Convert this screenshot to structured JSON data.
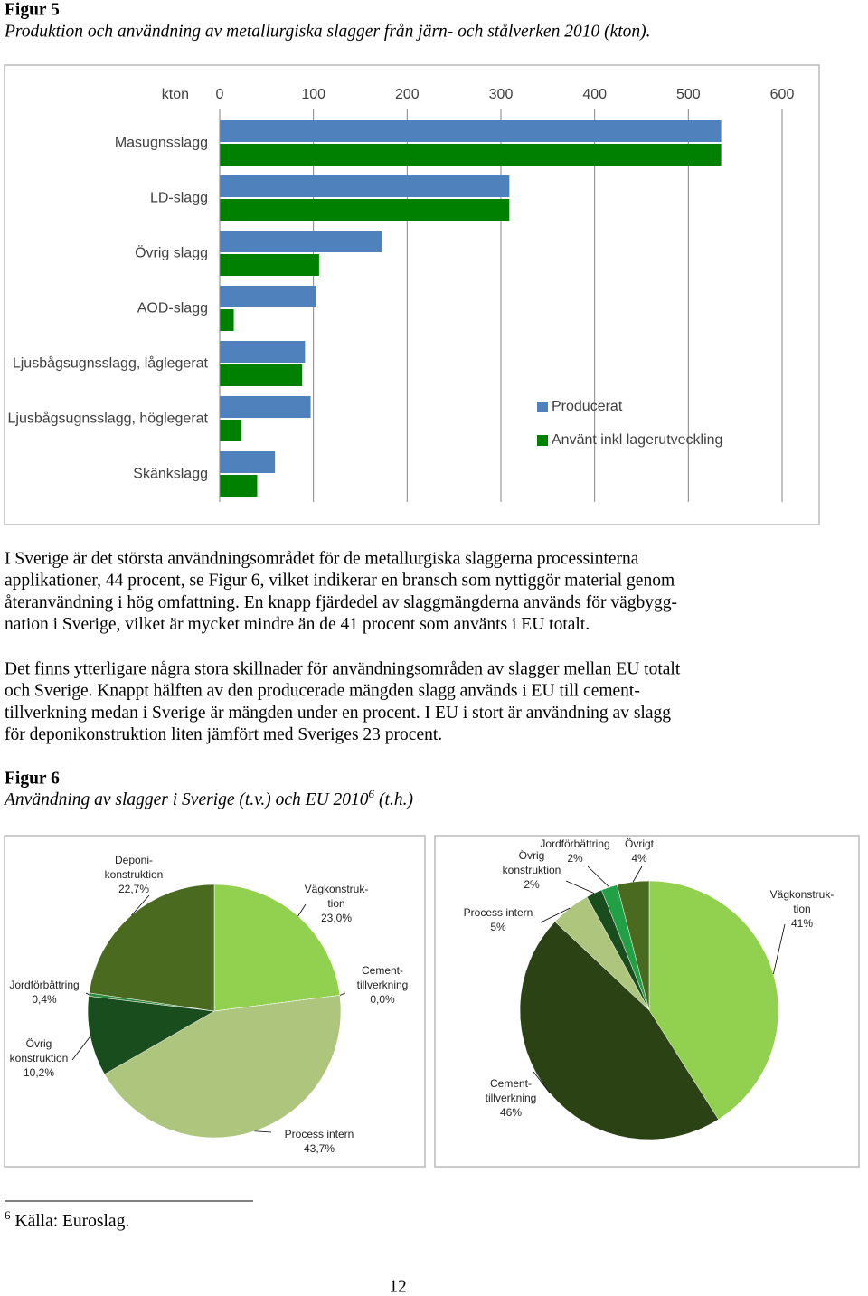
{
  "figure5": {
    "label": "Figur 5",
    "caption": "Produktion och användning av metallurgiska slagger från järn- och stålverken 2010 (kton)."
  },
  "chart_data": [
    {
      "type": "hbar",
      "axis_label": "kton",
      "categories": [
        "Masugnsslagg",
        "LD-slagg",
        "Övrig slagg",
        "AOD-slagg",
        "Ljusbågsugnsslagg, låglegerat",
        "Ljusbågsugnsslagg, höglegerat",
        "Skänkslagg"
      ],
      "series": [
        {
          "name": "Producerat",
          "color": "#4f81bd",
          "values": [
            535,
            309,
            173,
            103,
            91,
            97,
            59
          ]
        },
        {
          "name": "Använt inkl lagerutveckling",
          "color": "#008000",
          "values": [
            535,
            309,
            106,
            15,
            88,
            23,
            40
          ]
        }
      ],
      "xlim": [
        0,
        600
      ],
      "xticks": [
        0,
        100,
        200,
        300,
        400,
        500,
        600
      ],
      "grid": true,
      "legend": "right"
    },
    {
      "type": "pie",
      "categories": [
        "Vägkonstruk-\ntion",
        "Cement-\ntillverkning",
        "Process intern",
        "Övrig\nkonstruktion",
        "Jordförbättring",
        "Deponi-\nkonstruktion"
      ],
      "values": [
        23.0,
        0.0,
        43.7,
        10.2,
        0.4,
        22.7
      ],
      "value_labels": [
        "23,0%",
        "0,0%",
        "43,7%",
        "10,2%",
        "0,4%",
        "22,7%"
      ],
      "colors": [
        "#92d050",
        "#7fb23a",
        "#adc57c",
        "#1a4d1e",
        "#2e8b3e",
        "#4a6a20"
      ]
    },
    {
      "type": "pie",
      "categories": [
        "Vägkonstruk-\ntion",
        "Cement-\ntillverkning",
        "Process intern",
        "Övrig\nkonstruktion",
        "Jordförbättring",
        "Övrigt"
      ],
      "values": [
        41,
        46,
        5,
        2,
        2,
        4
      ],
      "value_labels": [
        "41%",
        "46%",
        "5%",
        "2%",
        "2%",
        "4%"
      ],
      "colors": [
        "#92d050",
        "#2a4214",
        "#adc57c",
        "#1a4d1e",
        "#22a046",
        "#4a6a20"
      ]
    }
  ],
  "paragraphs": [
    [
      "I Sverige är det största användningsområdet för de metallurgiska slaggerna processinterna",
      "applikationer, 44 procent, se Figur 6, vilket indikerar en bransch som nyttiggör material genom",
      "återanvändning i hög omfattning. En knapp fjärdedel av slaggmängderna används för vägbygg-",
      "nation i Sverige, vilket är mycket mindre än de 41 procent som använts i EU totalt."
    ],
    [
      "Det finns ytterligare några stora skillnader för användningsområden av slagger mellan EU totalt",
      "och Sverige. Knappt hälften av den producerade mängden slagg används i EU till cement-",
      "tillverkning medan i Sverige är mängden under en procent. I EU i stort är användning av slagg",
      "för deponikonstruktion liten jämfört med Sveriges 23 procent."
    ]
  ],
  "figure6": {
    "label": "Figur 6",
    "caption": "Användning av slagger i Sverige (t.v.) och EU 2010",
    "footnote_ref": "6",
    "caption_end": "(t.h.)"
  },
  "footnote": {
    "mark": "6",
    "text": "Källa: Euroslag."
  },
  "page_number": "12"
}
